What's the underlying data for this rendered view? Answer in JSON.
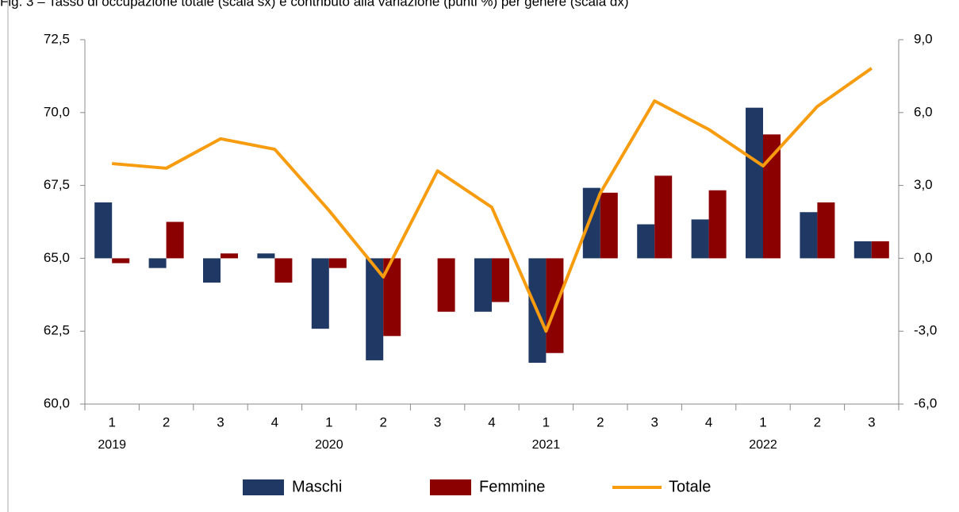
{
  "chart_data": {
    "type": "combo",
    "title": "Fig. 3 – Tasso di occupazione totale (scala sx) e contributo alla variazione (punti %) per genere (scala dx)",
    "categories": [
      "1",
      "2",
      "3",
      "4",
      "1",
      "2",
      "3",
      "4",
      "1",
      "2",
      "3",
      "4",
      "1",
      "2",
      "3"
    ],
    "years": [
      "2019",
      null,
      null,
      null,
      "2020",
      null,
      null,
      null,
      "2021",
      null,
      null,
      null,
      "2022",
      null,
      null
    ],
    "series": [
      {
        "name": "Maschi",
        "type": "bar",
        "axis": "y2",
        "color": "#1f3864",
        "values": [
          2.3,
          -0.4,
          -1.0,
          0.2,
          -2.9,
          -4.2,
          0.0,
          -2.2,
          -4.3,
          2.9,
          1.4,
          1.6,
          6.2,
          1.9,
          0.7
        ]
      },
      {
        "name": "Femmine",
        "type": "bar",
        "axis": "y2",
        "color": "#8b0000",
        "values": [
          -0.2,
          1.5,
          0.2,
          -1.0,
          -0.4,
          -3.2,
          -2.2,
          -1.8,
          -3.9,
          2.7,
          3.4,
          2.8,
          5.1,
          2.3,
          0.7
        ]
      },
      {
        "name": "Totale",
        "type": "line",
        "axis": "y",
        "color": "#f79c0f",
        "values": [
          68.25,
          68.09,
          69.1,
          68.74,
          66.64,
          64.36,
          68.0,
          66.75,
          62.5,
          67.24,
          70.4,
          69.42,
          68.17,
          70.21,
          71.52
        ]
      }
    ],
    "ylim": [
      60,
      72.5
    ],
    "yticks": [
      {
        "value": 60,
        "label": "60,0"
      },
      {
        "value": 62.5,
        "label": "62,5"
      },
      {
        "value": 65,
        "label": "65,0"
      },
      {
        "value": 67.5,
        "label": "67,5"
      },
      {
        "value": 70,
        "label": "70,0"
      },
      {
        "value": 72.5,
        "label": "72,5"
      }
    ],
    "y2lim": [
      -6,
      9
    ],
    "y2ticks": [
      {
        "value": -6,
        "label": "-6,0"
      },
      {
        "value": -3,
        "label": "-3,0"
      },
      {
        "value": 0,
        "label": "0,0"
      },
      {
        "value": 3,
        "label": "3,0"
      },
      {
        "value": 6,
        "label": "6,0"
      },
      {
        "value": 9,
        "label": "9,0"
      }
    ],
    "legend": "bottom"
  }
}
